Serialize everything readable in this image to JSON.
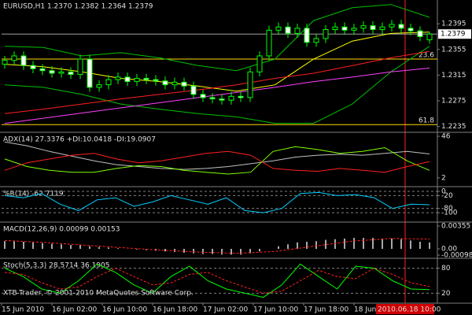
{
  "chart_data": [
    {
      "type": "candlestick",
      "title": "EURUSD,H1  1.2370 1.2382 1.2364 1.2379",
      "open": [
        1.2332,
        1.2338,
        1.2345,
        1.233,
        1.2325,
        1.2322,
        1.2318,
        1.232,
        1.2316,
        1.234,
        1.2296,
        1.23,
        1.2308,
        1.2312,
        1.2305,
        1.231,
        1.2308,
        1.2306,
        1.23,
        1.2304,
        1.2298,
        1.2285,
        1.228,
        1.2278,
        1.2276,
        1.2282,
        1.228,
        1.232,
        1.2345,
        1.2385,
        1.239,
        1.238,
        1.2388,
        1.2366,
        1.2372,
        1.2386,
        1.239,
        1.2385,
        1.2388,
        1.2392,
        1.2386,
        1.239,
        1.2394,
        1.2388,
        1.2384,
        1.237
      ],
      "high": [
        1.2345,
        1.2352,
        1.2352,
        1.2337,
        1.2332,
        1.2329,
        1.2327,
        1.2327,
        1.2347,
        1.2347,
        1.2307,
        1.2315,
        1.2319,
        1.2319,
        1.2317,
        1.2317,
        1.2315,
        1.2313,
        1.2311,
        1.2311,
        1.2305,
        1.2292,
        1.2287,
        1.2285,
        1.2289,
        1.2289,
        1.2327,
        1.2352,
        1.2392,
        1.2397,
        1.2397,
        1.2395,
        1.2395,
        1.2379,
        1.2393,
        1.2397,
        1.2397,
        1.2395,
        1.2399,
        1.2399,
        1.2397,
        1.2401,
        1.2401,
        1.2395,
        1.2391,
        1.2382
      ],
      "low": [
        1.2325,
        1.2331,
        1.2323,
        1.2318,
        1.2315,
        1.2311,
        1.2311,
        1.2309,
        1.2309,
        1.2289,
        1.2289,
        1.2293,
        1.2301,
        1.2298,
        1.2298,
        1.2301,
        1.2299,
        1.2293,
        1.2293,
        1.2291,
        1.2278,
        1.2273,
        1.2271,
        1.2269,
        1.2269,
        1.2273,
        1.2273,
        1.2313,
        1.2338,
        1.2378,
        1.2373,
        1.2373,
        1.2359,
        1.2359,
        1.2365,
        1.2379,
        1.2378,
        1.2378,
        1.2381,
        1.2379,
        1.2379,
        1.2383,
        1.2381,
        1.2377,
        1.2368,
        1.2364
      ],
      "close": [
        1.2338,
        1.2345,
        1.233,
        1.2325,
        1.2322,
        1.2318,
        1.232,
        1.2316,
        1.234,
        1.2296,
        1.23,
        1.2308,
        1.2312,
        1.2305,
        1.231,
        1.2308,
        1.2306,
        1.23,
        1.2304,
        1.2298,
        1.2285,
        1.228,
        1.2278,
        1.2276,
        1.2282,
        1.228,
        1.232,
        1.2345,
        1.2385,
        1.239,
        1.238,
        1.2388,
        1.2366,
        1.2372,
        1.2386,
        1.239,
        1.2385,
        1.2388,
        1.2392,
        1.2386,
        1.239,
        1.2394,
        1.2388,
        1.2384,
        1.2375,
        1.2379
      ],
      "color": "#00ff00",
      "lines": [
        {
          "color": "#00c000",
          "values": [
            1.236,
            1.2358,
            1.2345,
            1.235,
            1.2342,
            1.233,
            1.2322,
            1.234,
            1.24,
            1.242,
            1.2425,
            1.2405
          ]
        },
        {
          "color": "#00c000",
          "values": [
            1.23,
            1.2296,
            1.2285,
            1.227,
            1.2262,
            1.2255,
            1.225,
            1.224,
            1.224,
            1.227,
            1.232,
            1.236
          ]
        },
        {
          "color": "#ffff00",
          "values": [
            1.2332,
            1.2328,
            1.232,
            1.231,
            1.2305,
            1.2298,
            1.229,
            1.23,
            1.234,
            1.2368,
            1.238,
            1.2382
          ]
        },
        {
          "color": "#ff2020",
          "values": [
            1.2255,
            1.2262,
            1.227,
            1.2278,
            1.2285,
            1.2292,
            1.23,
            1.231,
            1.2318,
            1.233,
            1.2342,
            1.2352
          ]
        },
        {
          "color": "#ff40ff",
          "values": [
            1.224,
            1.2248,
            1.2256,
            1.2264,
            1.2272,
            1.228,
            1.2288,
            1.2296,
            1.2305,
            1.2312,
            1.232,
            1.2326
          ]
        }
      ],
      "fib_levels": [
        {
          "value": 1.234,
          "label": "23.6"
        },
        {
          "value": 1.2238,
          "label": "61.8"
        }
      ],
      "current_price": 1.2379,
      "ylim": [
        1.2226,
        1.2432
      ],
      "yticks": [
        1.2395,
        1.2355,
        1.2315,
        1.2275,
        1.2235
      ]
    },
    {
      "type": "line",
      "title": "ADX(14) 27.3376 +DI:10.0418 -DI:19.0907",
      "series": [
        {
          "color": "#c0c0c0",
          "values": [
            40,
            36,
            30,
            25,
            20,
            16,
            14,
            12,
            11,
            12,
            14,
            17,
            20,
            24,
            26,
            27,
            26,
            28,
            30,
            27.3
          ]
        },
        {
          "color": "#7fff00",
          "values": [
            22,
            14,
            10,
            8,
            8,
            12,
            15,
            14,
            10,
            8,
            6,
            8,
            30,
            35,
            32,
            28,
            30,
            34,
            20,
            10.0
          ]
        },
        {
          "color": "#ff2020",
          "values": [
            10,
            18,
            22,
            26,
            28,
            22,
            18,
            20,
            24,
            28,
            30,
            26,
            12,
            10,
            9,
            12,
            10,
            8,
            14,
            19.1
          ]
        }
      ],
      "ylim": [
        -7.3,
        49.4
      ],
      "yticks": [
        46,
        2
      ],
      "grid": false
    },
    {
      "type": "line",
      "title": "%R(14) -62.7119",
      "series": [
        {
          "color": "#00d0ff",
          "values": [
            -20,
            -30,
            -10,
            -60,
            -90,
            -40,
            -30,
            -70,
            -50,
            -20,
            -40,
            -60,
            -30,
            -90,
            -100,
            -80,
            -10,
            -5,
            -20,
            -15,
            -30,
            -80,
            -60,
            -62.7
          ]
        }
      ],
      "ylim": [
        -144,
        18.5
      ],
      "yticks": [
        0,
        -20,
        -80,
        -100
      ],
      "grid": true
    },
    {
      "type": "macd",
      "title": "MACD(12,26,9) 0.00099 0.00153",
      "values": [
        0.0012,
        0.0012,
        0.0011,
        0.001,
        0.0009,
        0.0008,
        0.0007,
        0.0006,
        0.0006,
        0.0004,
        0.0003,
        0.0002,
        0.0001,
        0.0,
        -0.0001,
        -0.0002,
        -0.0003,
        -0.0004,
        -0.0005,
        -0.0006,
        -0.0007,
        -0.0008,
        -0.0008,
        -0.0009,
        -0.0009,
        -0.0009,
        -0.0007,
        -0.0004,
        0.0,
        0.0004,
        0.0007,
        0.001,
        0.0011,
        0.0012,
        0.0014,
        0.0015,
        0.0016,
        0.0017,
        0.0017,
        0.0017,
        0.0016,
        0.0016,
        0.0015,
        0.0013,
        0.0011,
        0.00099
      ],
      "color": "#e0e0e0",
      "series": [
        {
          "color": "#ff2020",
          "dash": true,
          "values": [
            0.0013,
            0.001,
            0.0006,
            0.0002,
            -0.0002,
            -0.0005,
            -0.0007,
            -0.0004,
            0.0004,
            0.0012,
            0.0016,
            0.00153
          ]
        }
      ],
      "ylim": [
        -0.00147,
        0.00404
      ],
      "yticks": [
        0.00355,
        {
          "value": 0,
          "label": "0.00"
        },
        -0.00098
      ],
      "grid": false
    },
    {
      "type": "line",
      "title": "Stoch(5,3,3) 28.5714 36.1905",
      "series": [
        {
          "color": "#00ff00",
          "values": [
            80,
            60,
            30,
            20,
            50,
            90,
            70,
            40,
            20,
            60,
            85,
            50,
            30,
            20,
            10,
            40,
            90,
            60,
            30,
            85,
            80,
            50,
            30,
            28.6
          ]
        },
        {
          "color": "#ff2020",
          "dash": true,
          "values": [
            70,
            65,
            45,
            30,
            35,
            60,
            80,
            60,
            40,
            45,
            65,
            70,
            50,
            35,
            20,
            25,
            50,
            75,
            60,
            55,
            80,
            65,
            45,
            36.2
          ]
        }
      ],
      "ylim": [
        -4,
        102
      ],
      "yticks": [
        80,
        20
      ],
      "grid": true
    }
  ],
  "x_axis": {
    "labels": [
      "15 Jun 2010",
      "16 Jun 02:00",
      "16 Jun 10:00",
      "16 Jun 18:00",
      "17 Jun 02:00",
      "17 Jun 10:00",
      "17 Jun 18:00",
      "18 Jun 02:00"
    ],
    "cursor_label": "2010.06.18 10:00"
  },
  "copyright": "XTB-Trader, © 2001-2010 MetaQuotes Software Corp."
}
